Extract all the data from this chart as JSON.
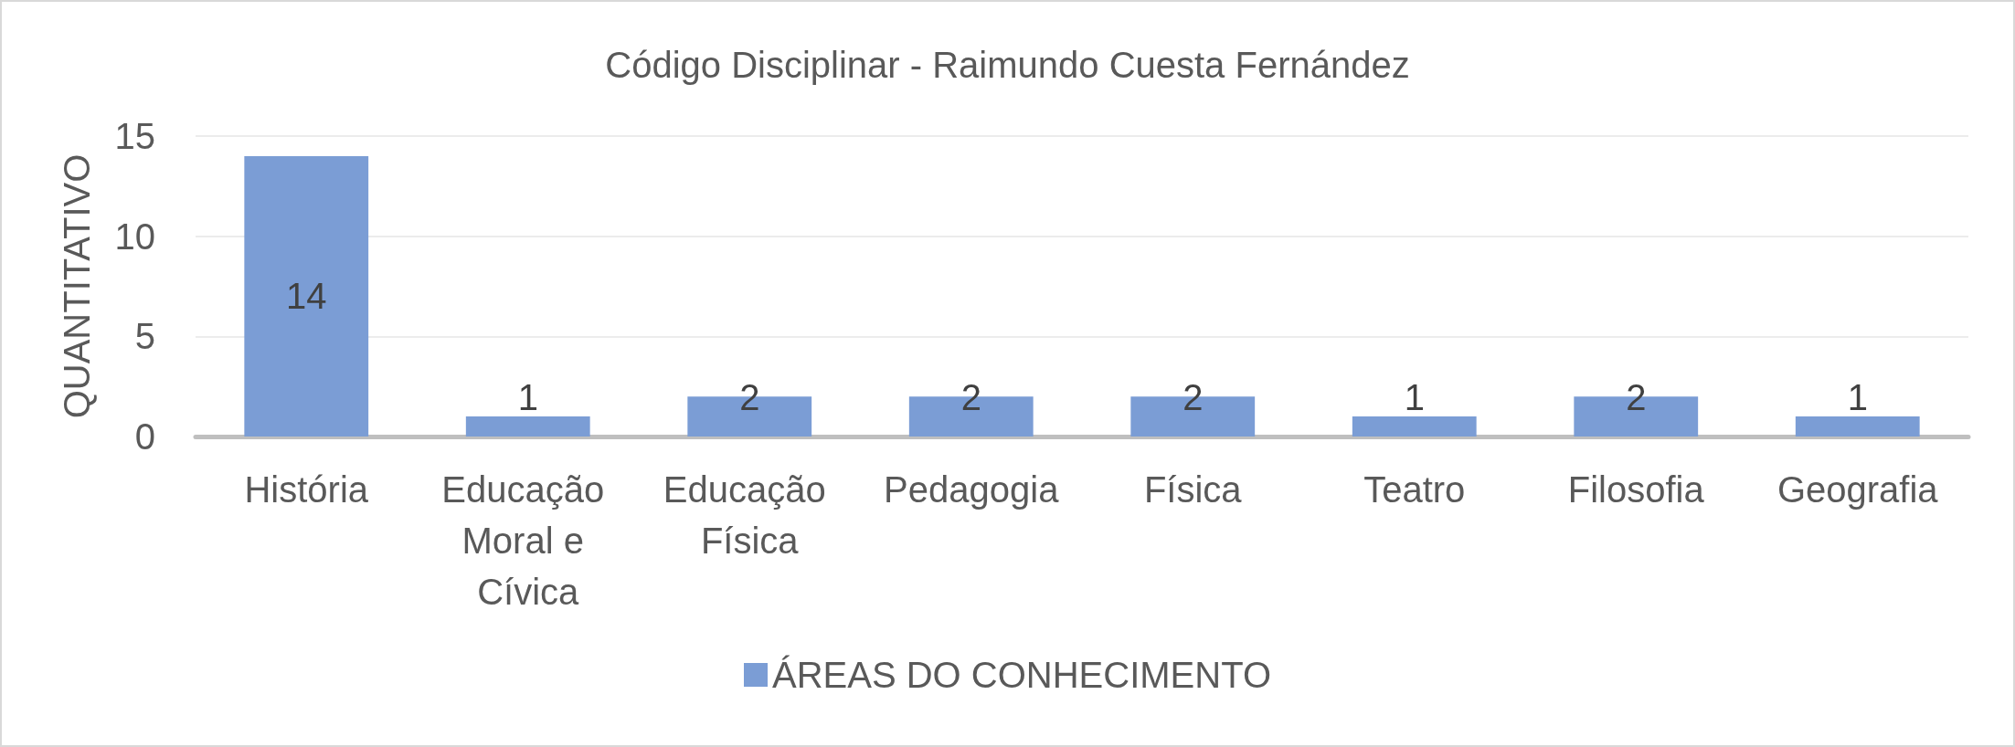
{
  "chart_data": {
    "type": "bar",
    "title": "Código Disciplinar - Raimundo Cuesta Fernández",
    "ylabel": "QUANTITATIVO",
    "categories": [
      "História",
      "Educação Moral e Cívica",
      "Educação Física",
      "Pedagogia",
      "Física",
      "Teatro",
      "Filosofia",
      "Geografia"
    ],
    "series": [
      {
        "name": "ÁREAS DO CONHECIMENTO",
        "color": "#7b9dd5",
        "values": [
          14,
          1,
          2,
          2,
          2,
          1,
          2,
          1
        ]
      }
    ],
    "ylim": [
      0,
      15
    ],
    "yticks": [
      0,
      5,
      10,
      15
    ],
    "grid": "y",
    "legend": "bottom",
    "data_labels": true
  }
}
